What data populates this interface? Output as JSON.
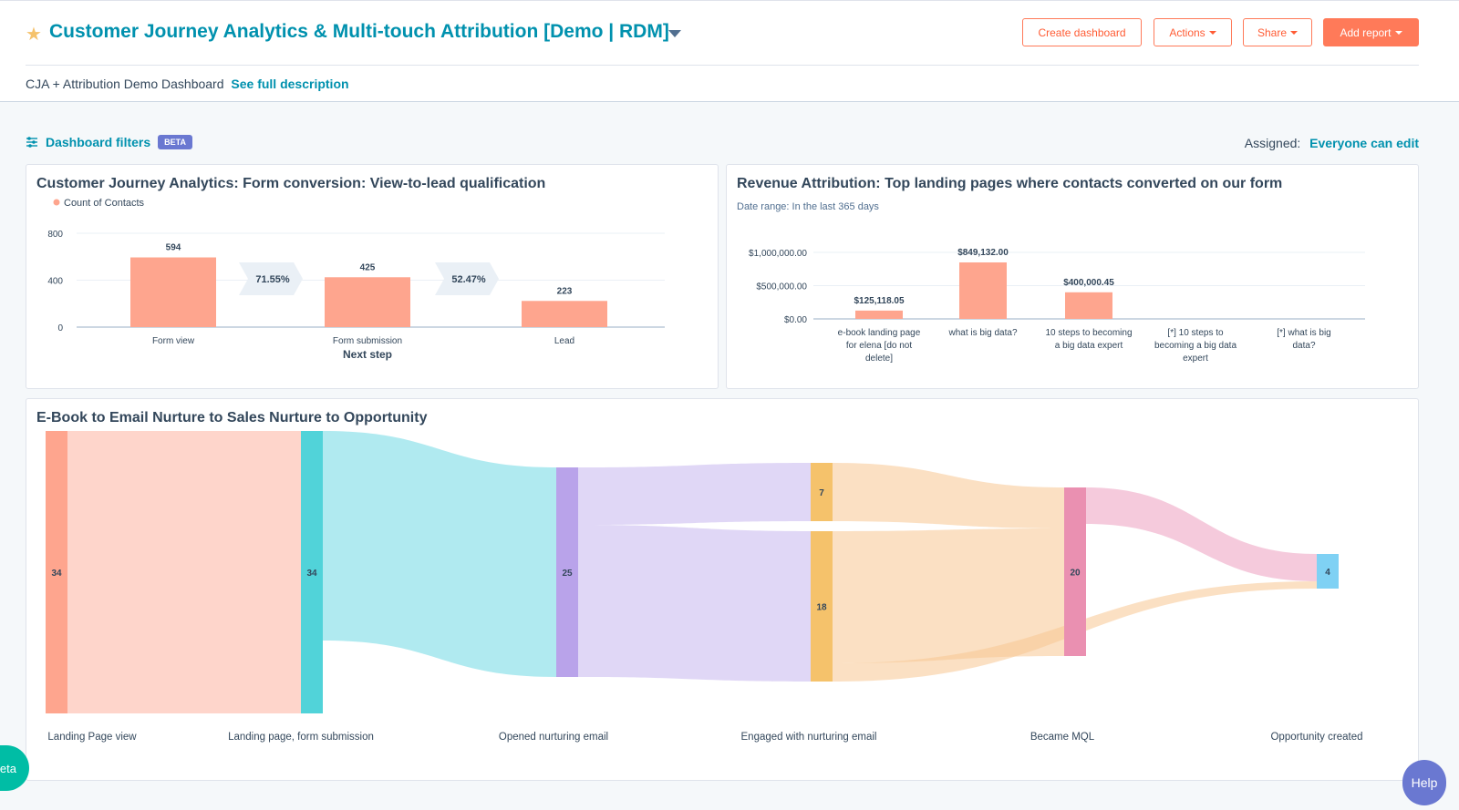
{
  "header": {
    "title": "Customer Journey Analytics & Multi-touch Attribution [Demo | RDM]",
    "buttons": {
      "create_dashboard": "Create dashboard",
      "actions": "Actions",
      "share": "Share",
      "add_report": "Add report"
    },
    "subtitle": "CJA + Attribution Demo Dashboard",
    "see_full_description": "See full description"
  },
  "filters": {
    "label": "Dashboard filters",
    "badge": "BETA",
    "assigned_label": "Assigned:",
    "assigned_value": "Everyone can edit"
  },
  "colors": {
    "accent": "#0091ae",
    "cta": "#ff7a59",
    "bar": "#fea58e",
    "beta": "#6a78d1"
  },
  "cards": {
    "funnel_title": "Customer Journey Analytics: Form conversion: View-to-lead qualification",
    "revenue_title": "Revenue Attribution: Top landing pages where contacts converted on our form",
    "revenue_subtitle": "Date range: In the last 365 days",
    "sankey_title": "E-Book to Email Nurture to Sales Nurture to Opportunity"
  },
  "chart_data": [
    {
      "type": "bar",
      "legend": [
        "Count of Contacts"
      ],
      "categories": [
        "Form view",
        "Form submission",
        "Lead"
      ],
      "values": [
        594,
        425,
        223
      ],
      "conversion_rates": [
        "71.55%",
        "52.47%"
      ],
      "xlabel": "Next step",
      "ylim": [
        0,
        800
      ],
      "yticks": [
        "800",
        "400",
        "0"
      ]
    },
    {
      "type": "bar",
      "categories": [
        "e-book landing page for elena [do not delete]",
        "what is big data?",
        "10 steps to becoming a big data expert",
        "[*] 10 steps to becoming a big data expert",
        "[*] what is big data?"
      ],
      "values": [
        125118.05,
        849132.0,
        400000.45,
        0,
        0
      ],
      "value_labels": [
        "$125,118.05",
        "$849,132.00",
        "$400,000.45",
        "",
        ""
      ],
      "ylim": [
        0,
        1000000
      ],
      "yticks": [
        "$1,000,000.00",
        "$500,000.00",
        "$0.00"
      ]
    },
    {
      "type": "sankey",
      "stages": [
        "Landing Page view",
        "Landing page, form submission",
        "Opened nurturing email",
        "Engaged with nurturing email",
        "Became MQL",
        "Opportunity created"
      ],
      "nodes": [
        "34",
        "34",
        "25",
        "7",
        "18",
        "20",
        "4"
      ]
    }
  ],
  "floating": {
    "beta": "eta",
    "help": "Help"
  }
}
